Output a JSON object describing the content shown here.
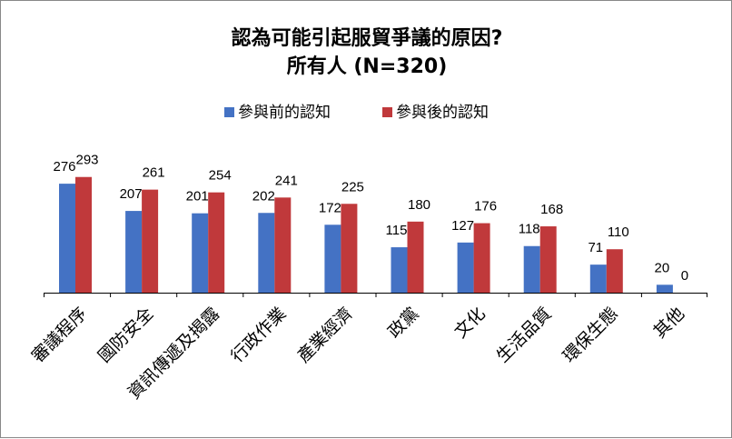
{
  "chart_data": {
    "type": "bar",
    "title": "認為可能引起服貿爭議的原因?",
    "subtitle": "所有人 (N=320)",
    "categories": [
      "審議程序",
      "國防安全",
      "資訊傳遞及揭露",
      "行政作業",
      "產業經濟",
      "政黨",
      "文化",
      "生活品質",
      "環保生態",
      "其他"
    ],
    "series": [
      {
        "name": "參與前的認知",
        "color": "#4472C4",
        "values": [
          276,
          207,
          201,
          202,
          172,
          115,
          127,
          118,
          71,
          20
        ]
      },
      {
        "name": "參與後的認知",
        "color": "#C0393B",
        "values": [
          293,
          261,
          254,
          241,
          225,
          180,
          176,
          168,
          110,
          0
        ]
      }
    ],
    "ylim": [
      0,
      320
    ],
    "grid": false,
    "legend": "top-center",
    "xlabel": "",
    "ylabel": ""
  }
}
